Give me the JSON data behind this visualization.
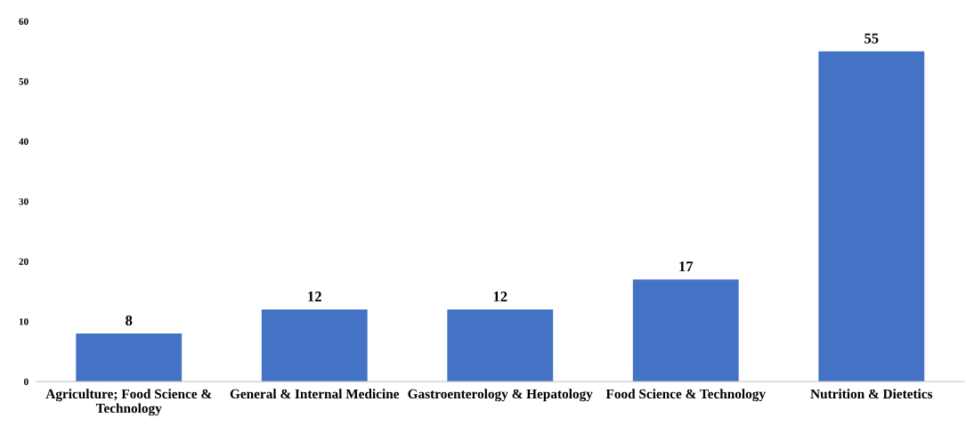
{
  "chart_data": {
    "type": "bar",
    "categories": [
      "Agriculture; Food Science &\nTechnology",
      "General & Internal Medicine",
      "Gastroenterology & Hepatology",
      "Food Science & Technology",
      "Nutrition & Dietetics"
    ],
    "values": [
      8,
      12,
      12,
      17,
      55
    ],
    "color": "#4472c4",
    "ylim": [
      0,
      60
    ],
    "yticks": [
      0,
      10,
      20,
      30,
      40,
      50,
      60
    ],
    "data_labels": true,
    "grid": false,
    "legend": false
  }
}
